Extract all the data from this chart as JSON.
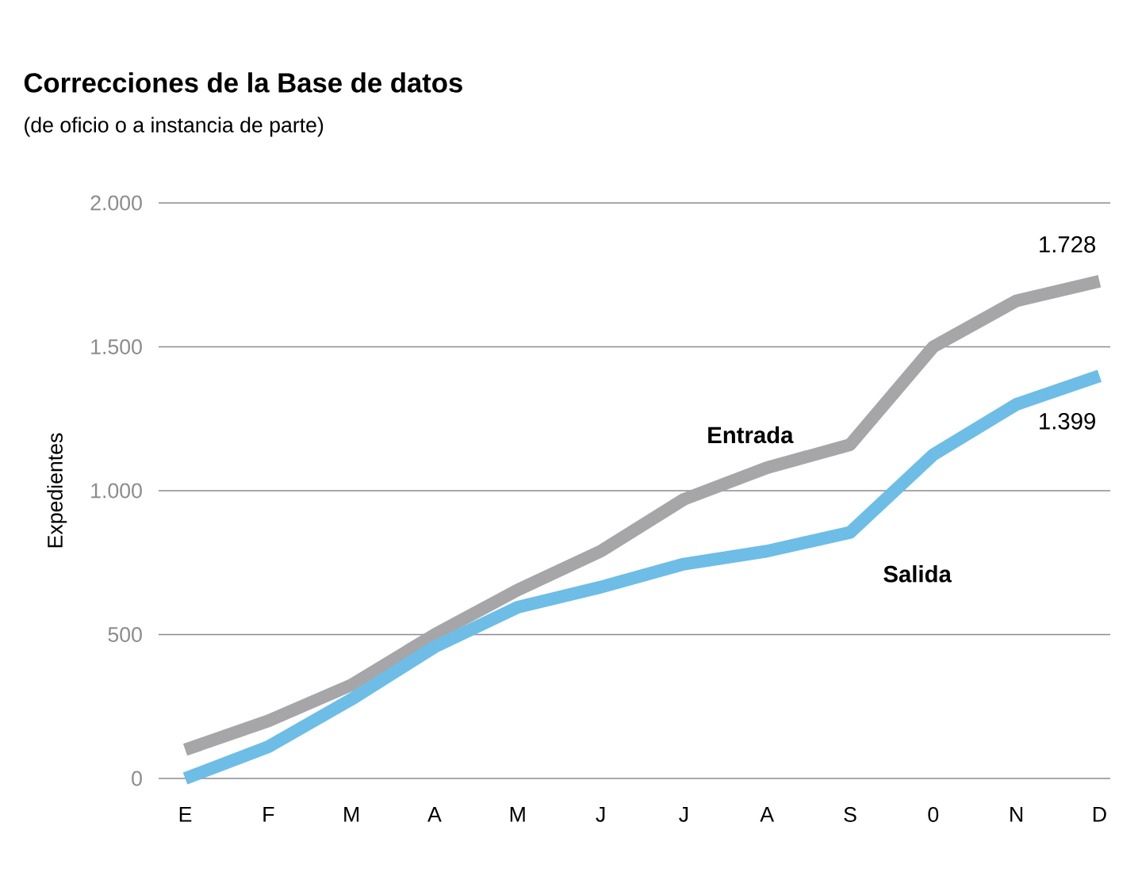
{
  "chart_data": {
    "type": "line",
    "title": "Correcciones de la Base de datos",
    "subtitle": "(de oficio o a instancia de parte)",
    "ylabel": "Expedientes",
    "categories": [
      "E",
      "F",
      "M",
      "A",
      "M",
      "J",
      "J",
      "A",
      "S",
      "0",
      "N",
      "D"
    ],
    "series": [
      {
        "name": "Entrada",
        "color": "#a6a6a8",
        "values": [
          100,
          200,
          325,
          500,
          655,
          790,
          970,
          1080,
          1160,
          1500,
          1660,
          1728
        ],
        "value_labels": [
          null,
          null,
          null,
          null,
          null,
          null,
          null,
          null,
          null,
          null,
          null,
          "1.728"
        ]
      },
      {
        "name": "Salida",
        "color": "#6dbde6",
        "values": [
          0,
          110,
          275,
          457,
          595,
          665,
          745,
          790,
          855,
          1125,
          1300,
          1399
        ],
        "value_labels": [
          null,
          null,
          null,
          null,
          null,
          null,
          null,
          null,
          null,
          null,
          null,
          "1.399"
        ]
      }
    ],
    "ylim": [
      0,
      2000
    ],
    "yticks": [
      {
        "value": 0,
        "label": "0"
      },
      {
        "value": 500,
        "label": "500"
      },
      {
        "value": 1000,
        "label": "1.000"
      },
      {
        "value": 1500,
        "label": "1.500"
      },
      {
        "value": 2000,
        "label": "2.000"
      }
    ],
    "grid": "y"
  }
}
